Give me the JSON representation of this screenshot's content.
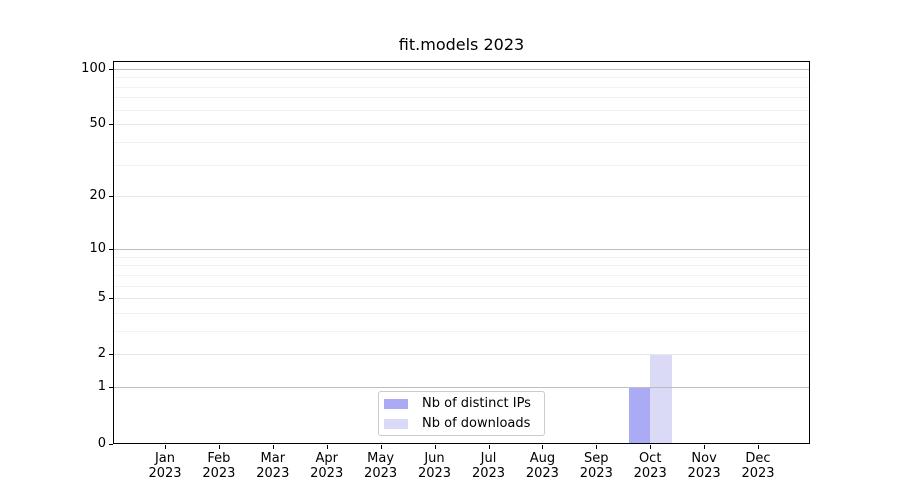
{
  "chart_data": {
    "type": "bar",
    "title": "fit.models 2023",
    "categories": [
      "Jan",
      "Feb",
      "Mar",
      "Apr",
      "May",
      "Jun",
      "Jul",
      "Aug",
      "Sep",
      "Oct",
      "Nov",
      "Dec"
    ],
    "tick_year": "2023",
    "series": [
      {
        "name": "Nb of distinct IPs",
        "color": "#aaaaf5",
        "values": [
          0,
          0,
          0,
          0,
          0,
          0,
          0,
          0,
          0,
          1,
          0,
          0
        ]
      },
      {
        "name": "Nb of downloads",
        "color": "#dadaf7",
        "values": [
          0,
          0,
          0,
          0,
          0,
          0,
          0,
          0,
          0,
          2,
          0,
          0
        ]
      }
    ],
    "xlabel": "",
    "ylabel": "",
    "y_scale": "log1p",
    "ylim": [
      0,
      110
    ],
    "y_ticks": [
      0,
      1,
      2,
      5,
      10,
      20,
      50,
      100
    ],
    "y_major_gridlines": [
      1,
      10,
      100
    ],
    "y_minor_gridlines": [
      3,
      4,
      6,
      7,
      8,
      9,
      30,
      40,
      60,
      70,
      80,
      90
    ],
    "grid": true,
    "legend_position": "lower center",
    "bar_group_width_fraction": 0.8
  }
}
